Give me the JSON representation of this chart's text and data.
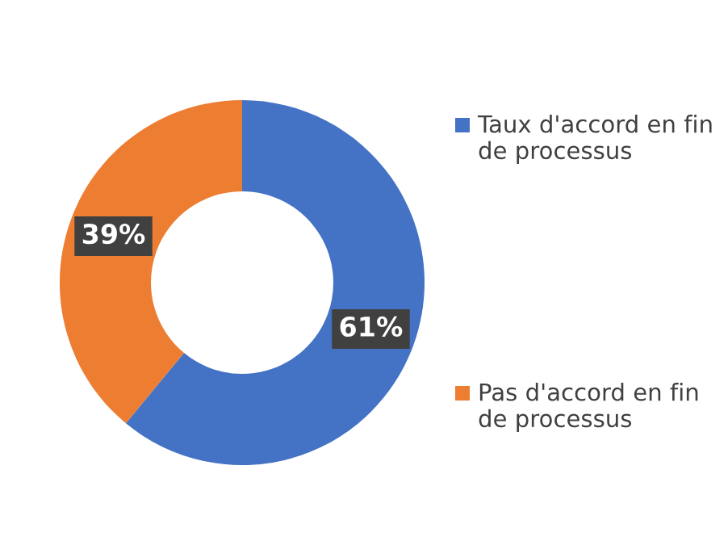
{
  "chart_data": {
    "type": "donut",
    "categories": [
      "Taux d'accord en fin de processus",
      "Pas d'accord en fin de processus"
    ],
    "values": [
      61,
      39
    ],
    "colors": [
      "#4472c4",
      "#ed7d31"
    ],
    "value_labels": [
      "61%",
      "39%"
    ],
    "legend": "right"
  }
}
